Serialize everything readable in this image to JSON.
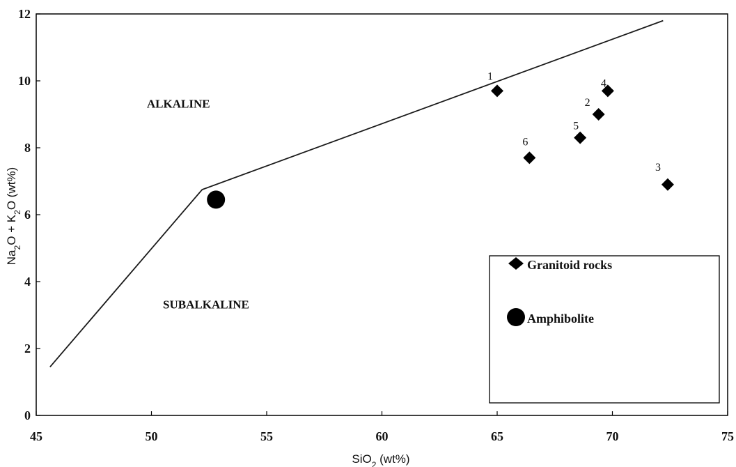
{
  "chart_data": {
    "type": "scatter",
    "title": "",
    "xlabel": {
      "prefix": "SiO",
      "sub": "2",
      "suffix": " (wt%)"
    },
    "ylabel": {
      "parts": [
        {
          "text": "Na",
          "sub": false
        },
        {
          "text": "2",
          "sub": true
        },
        {
          "text": "O + K",
          "sub": false
        },
        {
          "text": "2",
          "sub": true
        },
        {
          "text": "O (wt%)",
          "sub": false
        }
      ]
    },
    "xlim": [
      45,
      75
    ],
    "ylim": [
      0,
      12
    ],
    "x_ticks": [
      45,
      50,
      55,
      60,
      65,
      70,
      75
    ],
    "y_ticks": [
      0,
      2,
      4,
      6,
      8,
      10,
      12
    ],
    "grid": false,
    "legend_position": "bottom-right",
    "divider_line": [
      {
        "x": 45.6,
        "y": 1.45
      },
      {
        "x": 52.2,
        "y": 6.75
      },
      {
        "x": 72.2,
        "y": 11.8
      }
    ],
    "region_labels": [
      {
        "text": "ALKALINE",
        "x": 49.8,
        "y": 9.2
      },
      {
        "text": "SUBALKALINE",
        "x": 50.5,
        "y": 3.2
      }
    ],
    "series": [
      {
        "name": "Granitoid rocks",
        "marker": "diamond",
        "color": "#000000",
        "points": [
          {
            "label": "1",
            "x": 65.0,
            "y": 9.7
          },
          {
            "label": "2",
            "x": 69.4,
            "y": 9.0
          },
          {
            "label": "3",
            "x": 72.4,
            "y": 6.9
          },
          {
            "label": "4",
            "x": 69.8,
            "y": 9.7
          },
          {
            "label": "5",
            "x": 68.6,
            "y": 8.3
          },
          {
            "label": "6",
            "x": 66.4,
            "y": 7.7
          }
        ]
      },
      {
        "name": "Amphibolite",
        "marker": "circle",
        "color": "#000000",
        "points": [
          {
            "label": "",
            "x": 52.8,
            "y": 6.45
          }
        ]
      }
    ]
  }
}
